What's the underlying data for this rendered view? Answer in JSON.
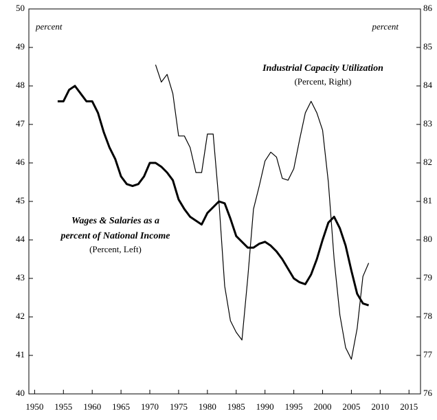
{
  "chart_data": {
    "type": "line",
    "annotations": {
      "left_unit": "percent",
      "right_unit": "percent",
      "capacity_title": "Industrial Capacity Utilization",
      "capacity_sub": "(Percent, Right)",
      "wages_title_1": "Wages & Salaries as a",
      "wages_title_2": "percent of National Income",
      "wages_sub": "(Percent, Left)"
    },
    "xlim": [
      1949,
      2017
    ],
    "xticks": [
      1950,
      1955,
      1960,
      1965,
      1970,
      1975,
      1980,
      1985,
      1990,
      1995,
      2000,
      2005,
      2010,
      2015
    ],
    "ylim": [
      40,
      50
    ],
    "yticks": [
      40,
      41,
      42,
      43,
      44,
      45,
      46,
      47,
      48,
      49,
      50
    ],
    "y2lim": [
      76,
      86
    ],
    "y2ticks": [
      76,
      77,
      78,
      79,
      80,
      81,
      82,
      83,
      84,
      85,
      86
    ],
    "series": [
      {
        "name": "Wages & Salaries as a percent of National Income",
        "color": "#000000",
        "axis": "y",
        "x": [
          1954,
          1955,
          1956,
          1957,
          1958,
          1959,
          1960,
          1961,
          1962,
          1963,
          1964,
          1965,
          1966,
          1967,
          1968,
          1969,
          1970,
          1971,
          1972,
          1973,
          1974,
          1975,
          1976,
          1977,
          1978,
          1979,
          1980,
          1981,
          1982,
          1983,
          1984,
          1985,
          1986,
          1987,
          1988,
          1989,
          1990,
          1991,
          1992,
          1993,
          1994,
          1995,
          1996,
          1997,
          1998,
          1999,
          2000,
          2001,
          2002,
          2003,
          2004,
          2005,
          2006,
          2007,
          2008
        ],
        "values": [
          47.6,
          47.6,
          47.9,
          48.0,
          47.8,
          47.6,
          47.6,
          47.3,
          46.8,
          46.4,
          46.1,
          45.65,
          45.45,
          45.4,
          45.45,
          45.65,
          46.0,
          46.0,
          45.9,
          45.75,
          45.55,
          45.05,
          44.8,
          44.6,
          44.5,
          44.4,
          44.7,
          44.85,
          45.0,
          44.95,
          44.55,
          44.1,
          43.95,
          43.8,
          43.8,
          43.9,
          43.95,
          43.85,
          43.7,
          43.5,
          43.25,
          43.0,
          42.9,
          42.85,
          43.1,
          43.5,
          44.0,
          44.45,
          44.6,
          44.3,
          43.85,
          43.2,
          42.6,
          42.35,
          42.3
        ]
      },
      {
        "name": "Industrial Capacity Utilization",
        "color": "#000000",
        "axis": "y2",
        "x": [
          1971,
          1972,
          1973,
          1974,
          1975,
          1976,
          1977,
          1978,
          1979,
          1980,
          1981,
          1982,
          1983,
          1984,
          1985,
          1986,
          1987,
          1988,
          1989,
          1990,
          1991,
          1992,
          1993,
          1994,
          1995,
          1996,
          1997,
          1998,
          1999,
          2000,
          2001,
          2002,
          2003,
          2004,
          2005,
          2006,
          2007,
          2008
        ],
        "values": [
          84.55,
          84.1,
          84.3,
          83.8,
          82.7,
          82.7,
          82.4,
          81.75,
          81.75,
          82.75,
          82.75,
          81.0,
          78.8,
          77.9,
          77.6,
          77.4,
          79.0,
          80.8,
          81.4,
          82.05,
          82.28,
          82.15,
          81.6,
          81.55,
          81.85,
          82.6,
          83.3,
          83.6,
          83.3,
          82.85,
          81.5,
          79.5,
          78.05,
          77.2,
          76.9,
          77.7,
          79.05,
          79.4
        ]
      }
    ]
  }
}
